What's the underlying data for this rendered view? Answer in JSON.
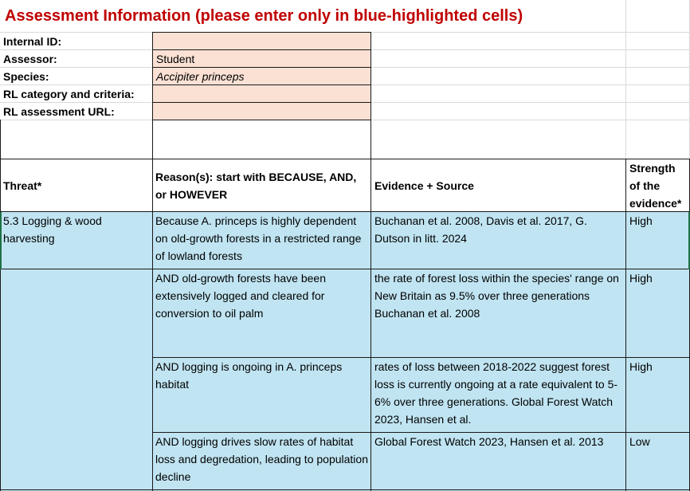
{
  "title": "Assessment Information (please enter only in blue-highlighted cells)",
  "fields": [
    {
      "label": "Internal ID:",
      "value": ""
    },
    {
      "label": "Assessor:",
      "value": "Student"
    },
    {
      "label": "Species:",
      "value": "Accipiter princeps"
    },
    {
      "label": "RL category and criteria:",
      "value": ""
    },
    {
      "label": "RL assessment URL:",
      "value": ""
    }
  ],
  "table": {
    "headers": {
      "threat": "Threat*",
      "reason": "Reason(s): start with BECAUSE, AND, or HOWEVER",
      "evidence": "Evidence + Source",
      "strength": "Strength of the evidence*"
    },
    "rows": [
      {
        "threat": "5.3 Logging & wood harvesting",
        "reason": "Because A. princeps is highly dependent on old-growth forests in a restricted range of lowland forests",
        "evidence": "Buchanan et al. 2008, Davis et al. 2017, G. Dutson in litt. 2024",
        "strength": "High"
      },
      {
        "threat": "",
        "reason": "AND old-growth forests have been extensively logged and cleared for conversion to oil palm",
        "evidence": "the rate of forest loss within the species' range on New Britain as 9.5% over three generations Buchanan et al. 2008",
        "strength": "High"
      },
      {
        "threat": "",
        "reason": "AND logging is ongoing in A. princeps habitat",
        "evidence": "rates of loss between 2018-2022 suggest forest loss is currently ongoing at a rate equivalent to 5-6% over three generations. Global Forest Watch 2023,  Hansen et al.",
        "strength": "High"
      },
      {
        "threat": "",
        "reason": "AND logging drives slow rates of habitat loss and degredation, leading to population decline",
        "evidence": "Global Forest Watch 2023,  Hansen et al. 2013",
        "strength": "Low"
      }
    ]
  }
}
